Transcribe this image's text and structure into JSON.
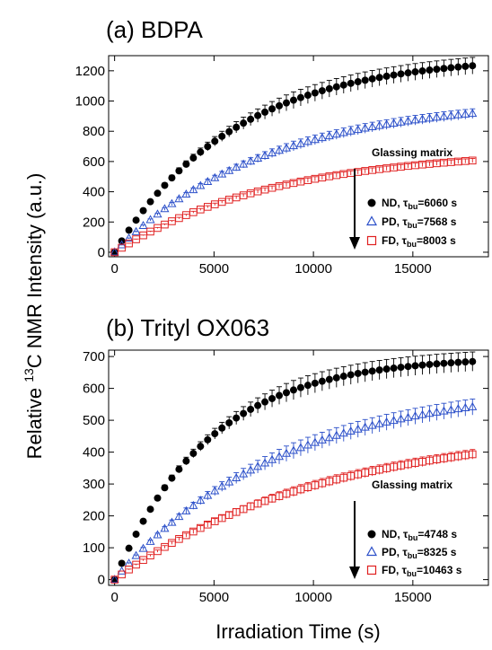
{
  "figure": {
    "xlabel": "Irradiation Time (s)",
    "ylabel_sup": "13",
    "ylabel_pre": "Relative ",
    "ylabel_post": "C NMR Intensity (a.u.)"
  },
  "chart_data": [
    {
      "type": "scatter",
      "title": "(a) BDPA",
      "xlabel": "Irradiation Time (s)",
      "ylabel": "Relative 13C NMR Intensity (a.u.)",
      "xlim": [
        -300,
        18800
      ],
      "ylim": [
        -30,
        1300
      ],
      "xticks": [
        0,
        5000,
        10000,
        15000
      ],
      "xtick_labels": [
        "0",
        "5000",
        "10000",
        "15000"
      ],
      "yticks": [
        0,
        200,
        400,
        600,
        800,
        1000,
        1200
      ],
      "ytick_labels": [
        "0",
        "200",
        "400",
        "600",
        "800",
        "1000",
        "1200"
      ],
      "x_step": 360,
      "x_max": 18000,
      "legend": {
        "title": "Glassing matrix",
        "placement": "lower-right"
      },
      "series": [
        {
          "name": "ND, τbu=6060 s",
          "prefix": "ND, ",
          "tau": "τ",
          "sub": "bu",
          "suffix": "=6060 s",
          "color": "#000000",
          "marker": "filled-circle",
          "plateau": 1300,
          "time_constant": 6060,
          "error": 55
        },
        {
          "name": "PD, τbu=7568 s",
          "prefix": "PD, ",
          "tau": "τ",
          "sub": "bu",
          "suffix": "=7568 s",
          "color": "#2b4fc9",
          "marker": "open-triangle",
          "plateau": 1010,
          "time_constant": 7568,
          "error": 32
        },
        {
          "name": "FD, τbu=8003 s",
          "prefix": "FD, ",
          "tau": "τ",
          "sub": "bu",
          "suffix": "=8003 s",
          "color": "#e02020",
          "marker": "open-square",
          "plateau": 678,
          "time_constant": 8003,
          "error": 14
        }
      ]
    },
    {
      "type": "scatter",
      "title": "(b) Trityl OX063",
      "xlabel": "Irradiation Time (s)",
      "ylabel": "Relative 13C NMR Intensity (a.u.)",
      "xlim": [
        -300,
        18800
      ],
      "ylim": [
        -18,
        720
      ],
      "xticks": [
        0,
        5000,
        10000,
        15000
      ],
      "xtick_labels": [
        "0",
        "5000",
        "10000",
        "15000"
      ],
      "yticks": [
        0,
        100,
        200,
        300,
        400,
        500,
        600,
        700
      ],
      "ytick_labels": [
        "0",
        "100",
        "200",
        "300",
        "400",
        "500",
        "600",
        "700"
      ],
      "x_step": 360,
      "x_max": 18000,
      "legend": {
        "title": "Glassing matrix",
        "placement": "lower-right"
      },
      "series": [
        {
          "name": "ND, τbu=4748 s",
          "prefix": "ND, ",
          "tau": "τ",
          "sub": "bu",
          "suffix": "=4748 s",
          "color": "#000000",
          "marker": "filled-circle",
          "plateau": 700,
          "time_constant": 4748,
          "error": 30
        },
        {
          "name": "PD, τbu=8325 s",
          "prefix": "PD, ",
          "tau": "τ",
          "sub": "bu",
          "suffix": "=8325 s",
          "color": "#2b4fc9",
          "marker": "open-triangle",
          "plateau": 612,
          "time_constant": 8325,
          "error": 25
        },
        {
          "name": "FD, τbu=10463 s",
          "prefix": "FD, ",
          "tau": "τ",
          "sub": "bu",
          "suffix": "=10463 s",
          "color": "#e02020",
          "marker": "open-square",
          "plateau": 479,
          "time_constant": 10463,
          "error": 15
        }
      ]
    }
  ]
}
